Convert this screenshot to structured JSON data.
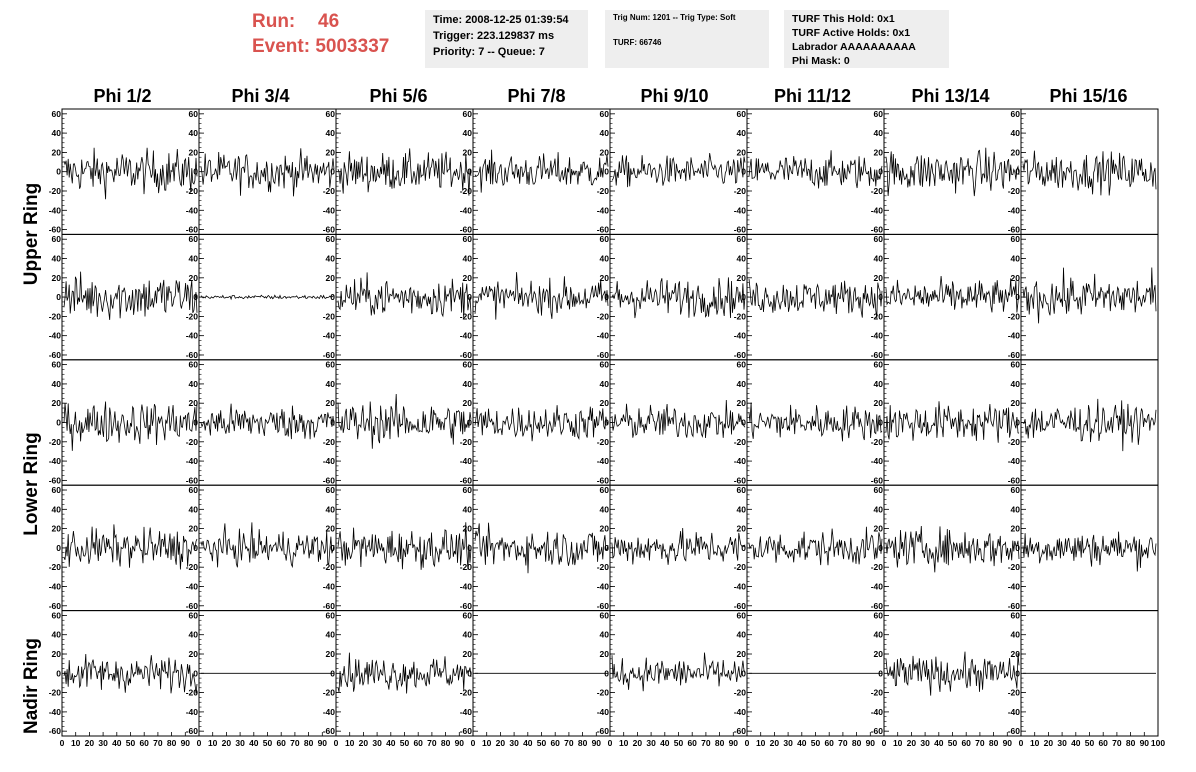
{
  "run": {
    "run_label": "Run:",
    "run_value": "46",
    "event_label": "Event:",
    "event_value": "5003337"
  },
  "info_time": {
    "time": "Time: 2008-12-25 01:39:54",
    "trigger": "Trigger: 223.129837 ms",
    "priority": "Priority: 7 -- Queue: 7"
  },
  "info_trig": {
    "trig": "Trig Num: 1201 -- Trig Type: Soft",
    "turf": "TURF: 66746"
  },
  "info_turf": {
    "this_hold": "TURF This Hold: 0x1",
    "active_holds": "TURF Active Holds: 0x1",
    "labrador": "Labrador AAAAAAAAAA",
    "phi_mask": "Phi Mask: 0"
  },
  "columns": [
    "Phi 1/2",
    "Phi 3/4",
    "Phi 5/6",
    "Phi 7/8",
    "Phi 9/10",
    "Phi 11/12",
    "Phi 13/14",
    "Phi 15/16"
  ],
  "rows": [
    {
      "label": "Upper Ring",
      "span": 2
    },
    {
      "label": "Lower Ring",
      "span": 2
    },
    {
      "label": "Nadir Ring",
      "span": 1
    }
  ],
  "chart_data": {
    "type": "line",
    "xlim": [
      0,
      100
    ],
    "ylim": [
      -65,
      65
    ],
    "ytick_labels": [
      "60",
      "40",
      "20",
      "0",
      "-20",
      "-40",
      "-60"
    ],
    "xtick_labels": [
      "0",
      "10",
      "20",
      "30",
      "40",
      "50",
      "60",
      "70",
      "80",
      "90",
      "100"
    ],
    "panel_rows": 5,
    "panel_cols": 8,
    "amplitude": [
      [
        11,
        10,
        10,
        9,
        8,
        9,
        11,
        10
      ],
      [
        12,
        1,
        10,
        9,
        10,
        9,
        9,
        11
      ],
      [
        11,
        9,
        11,
        9,
        9,
        9,
        10,
        10
      ],
      [
        10,
        9,
        10,
        10,
        9,
        9,
        10,
        9
      ],
      [
        9,
        0,
        9,
        0,
        8,
        0,
        9,
        0
      ]
    ]
  }
}
